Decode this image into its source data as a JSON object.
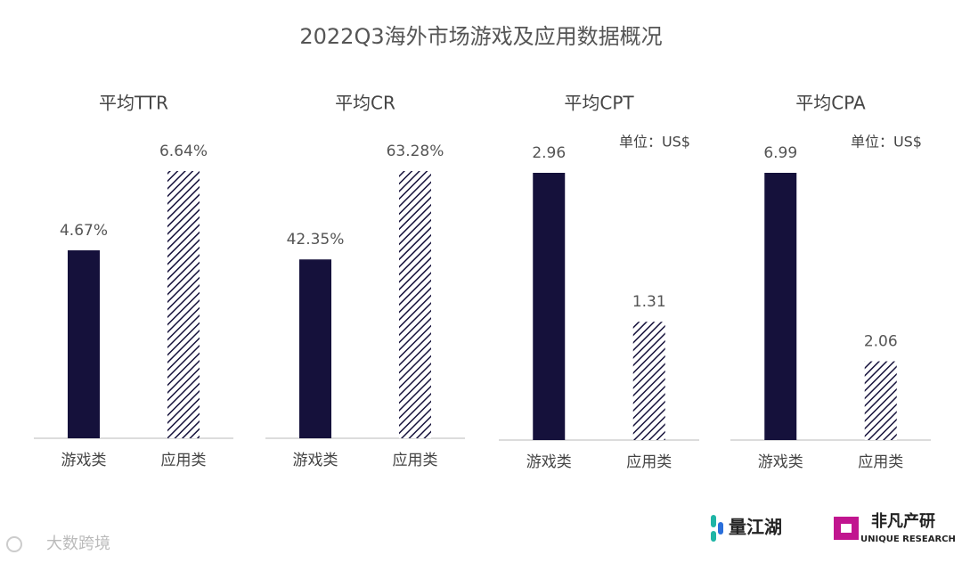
{
  "title": "2022Q3海外市场游戏及应用数据概况",
  "chart_data": [
    {
      "type": "bar",
      "title": "平均TTR",
      "categories": [
        "游戏类",
        "应用类"
      ],
      "values": [
        4.67,
        6.64
      ],
      "value_labels": [
        "4.67%",
        "6.64%"
      ],
      "colors": [
        "#15113b",
        "#15113b"
      ],
      "patterns": [
        "solid",
        "hatch"
      ]
    },
    {
      "type": "bar",
      "title": "平均CR",
      "categories": [
        "游戏类",
        "应用类"
      ],
      "values": [
        42.35,
        63.28
      ],
      "value_labels": [
        "42.35%",
        "63.28%"
      ],
      "colors": [
        "#15113b",
        "#15113b"
      ],
      "patterns": [
        "solid",
        "hatch"
      ]
    },
    {
      "type": "bar",
      "title": "平均CPT",
      "unit": "单位：US$",
      "categories": [
        "游戏类",
        "应用类"
      ],
      "values": [
        2.96,
        1.31
      ],
      "colors": [
        "#15113b",
        "#15113b"
      ],
      "patterns": [
        "solid",
        "hatch"
      ]
    },
    {
      "type": "bar",
      "title": "平均CPA",
      "unit": "单位：US$",
      "categories": [
        "游戏类",
        "应用类"
      ],
      "values": [
        6.99,
        2.06
      ],
      "colors": [
        "#15113b",
        "#15113b"
      ],
      "patterns": [
        "solid",
        "hatch"
      ]
    }
  ],
  "watermark": "大数跨境",
  "logos": {
    "left": "量江湖",
    "right_cn": "非凡产研",
    "right_en": "UNIQUE RESEARCH"
  }
}
